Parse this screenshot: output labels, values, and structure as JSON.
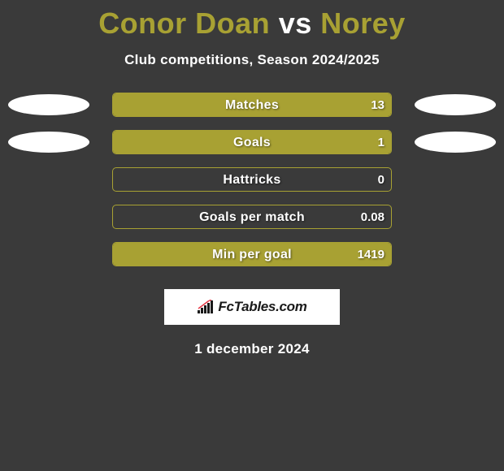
{
  "title": {
    "player1": "Conor Doan",
    "vs": "vs",
    "player2": "Norey"
  },
  "subtitle": "Club competitions, Season 2024/2025",
  "colors": {
    "accent": "#a8a133",
    "background": "#3a3a3a",
    "text": "#ffffff",
    "ellipse": "#ffffff"
  },
  "stats": [
    {
      "label": "Matches",
      "value_right": "13",
      "show_left_ellipse": true,
      "show_right_ellipse": true,
      "fill_left_pct": 0,
      "fill_right_pct": 100
    },
    {
      "label": "Goals",
      "value_right": "1",
      "show_left_ellipse": true,
      "show_right_ellipse": true,
      "fill_left_pct": 0,
      "fill_right_pct": 100
    },
    {
      "label": "Hattricks",
      "value_right": "0",
      "show_left_ellipse": false,
      "show_right_ellipse": false,
      "fill_left_pct": 0,
      "fill_right_pct": 0
    },
    {
      "label": "Goals per match",
      "value_right": "0.08",
      "show_left_ellipse": false,
      "show_right_ellipse": false,
      "fill_left_pct": 0,
      "fill_right_pct": 0
    },
    {
      "label": "Min per goal",
      "value_right": "1419",
      "show_left_ellipse": false,
      "show_right_ellipse": false,
      "fill_left_pct": 0,
      "fill_right_pct": 100
    }
  ],
  "logo": {
    "text": "FcTables.com"
  },
  "date": "1 december 2024"
}
